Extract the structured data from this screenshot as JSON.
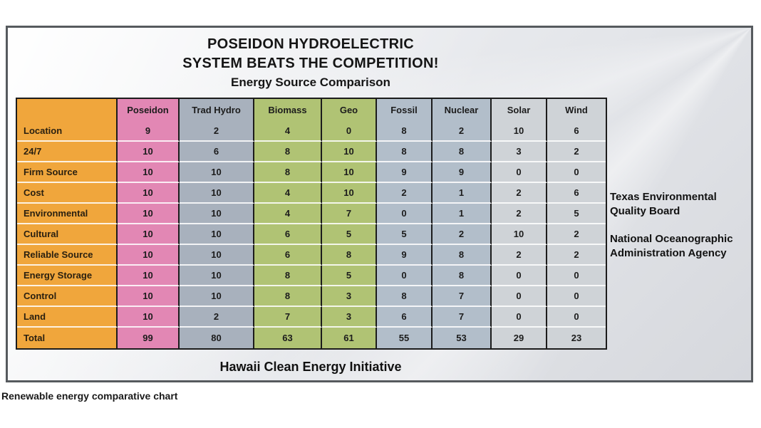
{
  "page": {
    "caption": "Renewable energy comparative chart"
  },
  "slide": {
    "title_line1": "POSEIDON HYDROELECTRIC",
    "title_line2": "SYSTEM BEATS THE COMPETITION!",
    "subtitle": "Energy Source Comparison",
    "footer": "Hawaii Clean Energy Initiative",
    "side_note_1": "Texas Environmental Quality Board",
    "side_note_2": "National Oceanographic Administration Agency"
  },
  "colors": {
    "label_column": "#F0A63C",
    "poseidon": "#E287B4",
    "trad_hydro": "#A8B1BD",
    "biomass": "#B0C374",
    "geo": "#B0C374",
    "fossil": "#B2BECA",
    "nuclear": "#B2BECA",
    "solar": "#CFD3D7",
    "wind": "#CFD3D7",
    "grid_line": "#1c1c1c",
    "frame_border": "#565a5e"
  },
  "chart_data": {
    "type": "table",
    "title": "POSEIDON HYDROELECTRIC SYSTEM BEATS THE COMPETITION!",
    "subtitle": "Energy Source Comparison",
    "columns": [
      "Poseidon",
      "Trad Hydro",
      "Biomass",
      "Geo",
      "Fossil",
      "Nuclear",
      "Solar",
      "Wind"
    ],
    "column_color_keys": [
      "poseidon",
      "trad_hydro",
      "biomass",
      "geo",
      "fossil",
      "nuclear",
      "solar",
      "wind"
    ],
    "rows": [
      {
        "label": "Location",
        "values": [
          9,
          2,
          4,
          0,
          8,
          2,
          10,
          6
        ]
      },
      {
        "label": "24/7",
        "values": [
          10,
          6,
          8,
          10,
          8,
          8,
          3,
          2
        ]
      },
      {
        "label": "Firm Source",
        "values": [
          10,
          10,
          8,
          10,
          9,
          9,
          0,
          0
        ]
      },
      {
        "label": "Cost",
        "values": [
          10,
          10,
          4,
          10,
          2,
          1,
          2,
          6
        ]
      },
      {
        "label": "Environmental",
        "values": [
          10,
          10,
          4,
          7,
          0,
          1,
          2,
          5
        ]
      },
      {
        "label": "Cultural",
        "values": [
          10,
          10,
          6,
          5,
          5,
          2,
          10,
          2
        ]
      },
      {
        "label": "Reliable Source",
        "values": [
          10,
          10,
          6,
          8,
          9,
          8,
          2,
          2
        ]
      },
      {
        "label": "Energy Storage",
        "values": [
          10,
          10,
          8,
          5,
          0,
          8,
          0,
          0
        ]
      },
      {
        "label": "Control",
        "values": [
          10,
          10,
          8,
          3,
          8,
          7,
          0,
          0
        ]
      },
      {
        "label": "Land",
        "values": [
          10,
          2,
          7,
          3,
          6,
          7,
          0,
          0
        ]
      },
      {
        "label": "Total",
        "values": [
          99,
          80,
          63,
          61,
          55,
          53,
          29,
          23
        ]
      }
    ],
    "footer": "Hawaii Clean Energy Initiative"
  }
}
